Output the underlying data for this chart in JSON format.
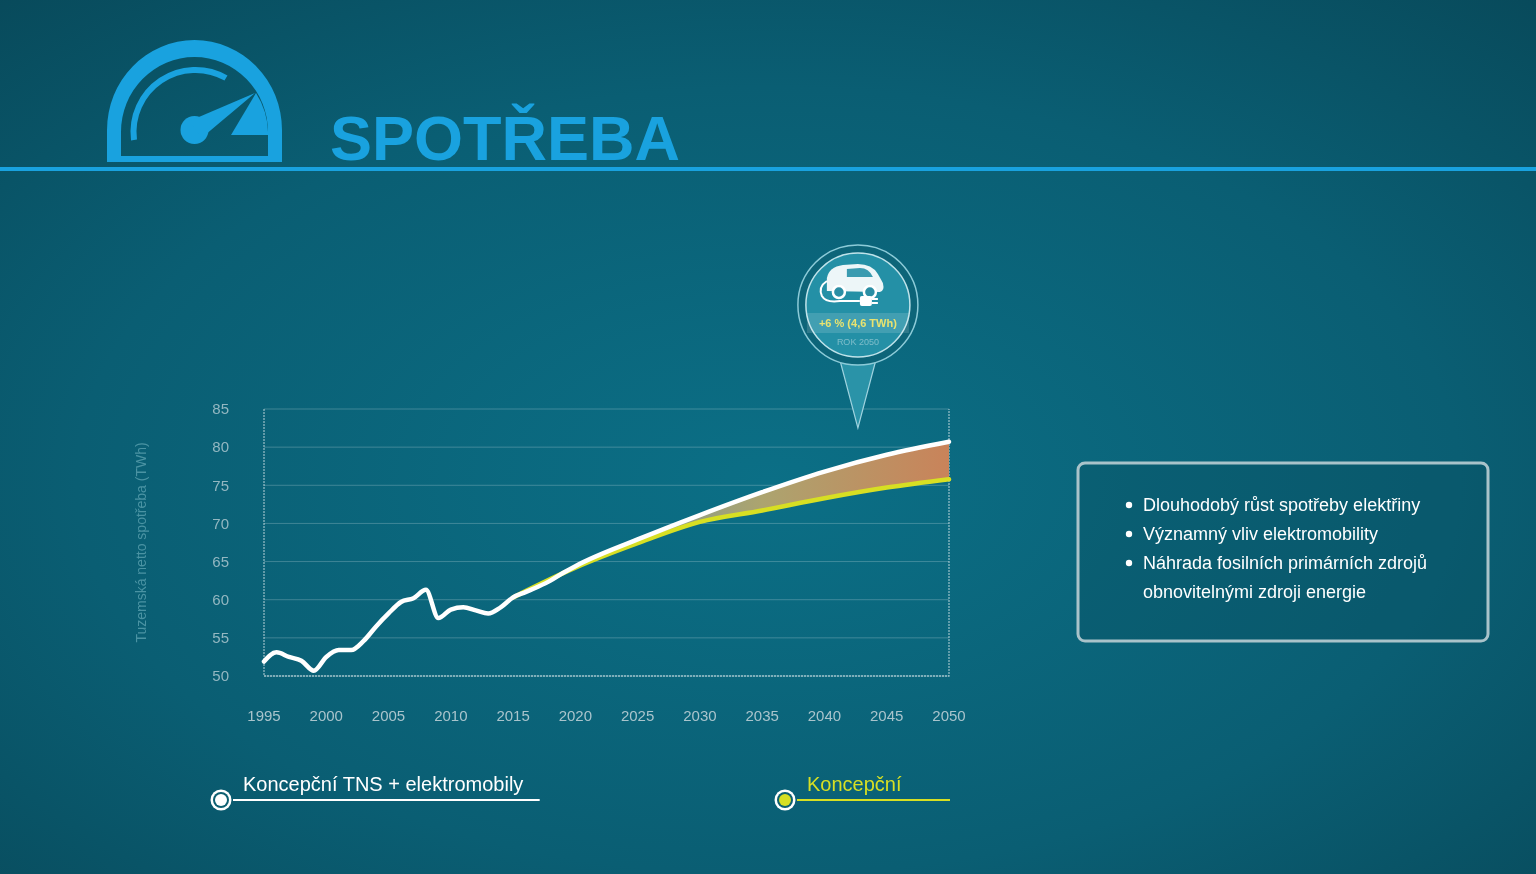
{
  "chart_data": [
    {
      "type": "line",
      "title": "SPOTŘEBA",
      "ylabel": "Tuzemská netto spotřeba (TWh)",
      "xlim": [
        1995,
        2050
      ],
      "xticks": [
        1995,
        2000,
        2005,
        2010,
        2015,
        2020,
        2025,
        2030,
        2035,
        2040,
        2045,
        2050
      ],
      "ylim": [
        50,
        85
      ],
      "yticks": [
        50,
        55,
        60,
        65,
        70,
        75,
        80,
        85
      ],
      "grid": "y",
      "legend": "bottom",
      "series": [
        {
          "name": "Koncepční TNS + elektromobily",
          "color": "#ffffff",
          "x": [
            1995,
            1996,
            1997,
            1998,
            1999,
            2000,
            2001,
            2002,
            2003,
            2004,
            2005,
            2006,
            2007,
            2008,
            2009,
            2010,
            2011,
            2012,
            2013,
            2014,
            2015,
            2016,
            2017,
            2018,
            2019,
            2020,
            2025,
            2030,
            2035,
            2040,
            2045,
            2050
          ],
          "values": [
            51.9,
            53.1,
            52.5,
            52.0,
            50.7,
            52.5,
            53.4,
            53.4,
            54.6,
            56.5,
            58.2,
            59.7,
            60.2,
            61.3,
            57.6,
            58.7,
            59.0,
            58.6,
            58.2,
            59.0,
            60.3,
            61.0,
            61.7,
            62.5,
            63.5,
            64.4,
            67.9,
            71.1,
            74.1,
            76.8,
            79.0,
            80.7
          ],
          "lower": [
            null,
            null,
            null,
            null,
            null,
            null,
            null,
            null,
            null,
            null,
            null,
            null,
            null,
            null,
            null,
            null,
            null,
            null,
            null,
            null,
            null,
            null,
            null,
            null,
            null,
            null,
            67.4,
            70.2,
            71.7,
            73.3,
            74.7,
            75.8
          ],
          "upper": [
            null,
            null,
            null,
            null,
            null,
            null,
            null,
            null,
            null,
            null,
            null,
            null,
            null,
            null,
            null,
            null,
            null,
            null,
            null,
            null,
            null,
            null,
            null,
            null,
            null,
            null,
            67.9,
            71.1,
            74.1,
            76.8,
            79.0,
            80.7
          ]
        },
        {
          "name": "Koncepční",
          "color": "#d7df23",
          "x": [
            2015,
            2020,
            2025,
            2030,
            2035,
            2040,
            2045,
            2050
          ],
          "values": [
            60.3,
            64.2,
            67.4,
            70.2,
            71.7,
            73.3,
            74.7,
            75.8
          ]
        }
      ],
      "annotations": [
        "+6 % (4,6 TWh)",
        "ROK 2050"
      ]
    },
    {
      "type": "other",
      "annotations": [
        "Dlouhodobý růst spotřeby elektřiny",
        "Významný vliv elektromobility",
        "Náhrada fosilních primárních zdrojů obnovitelnými zdroji energie"
      ]
    }
  ]
}
